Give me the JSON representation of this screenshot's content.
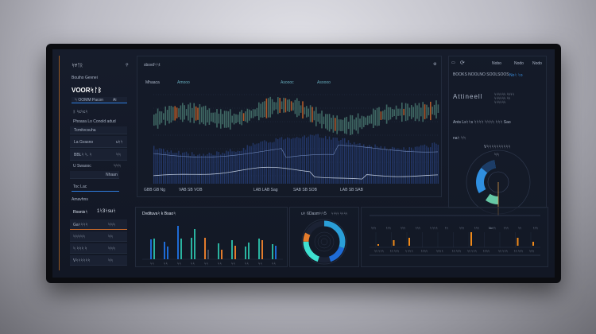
{
  "sidebar": {
    "logo": "ᛋ∀ᛏᚱ",
    "subtitle": "Bouiho Gevnei",
    "title": "VOORᛋᛚᛒ",
    "tab_left": "ᛋ OOMM  Pacon",
    "tab_right": "Ai",
    "items": [
      "ᛒ ᛋcᛋcᛋ",
      "Phoasa Lo  Conold adud",
      "Tcmitvcsuha"
    ],
    "rows": [
      {
        "label": "La Gvasno",
        "value": "uᛋᛋ"
      },
      {
        "label": "BBLᛋ ᛋ. ᛋ",
        "value": "ᛋᛋ"
      },
      {
        "label": "U Swaooc",
        "value": "ᛋᛋᛋ"
      }
    ],
    "bottom_item": "Nhaan",
    "bottom_item2": "Toc Lac",
    "footer": "Amavhns"
  },
  "main_chart": {
    "title": "sbsvdᛋᛋt",
    "legend": [
      "Mhaaca",
      "Amooo",
      "Asoooc",
      "Asoooo"
    ],
    "x_labels": [
      "GBB GB Ng",
      "VAB SB VOB",
      "LAB LAB Sag",
      "SAB SB SOB",
      "LAB SB SAB"
    ],
    "colors": {
      "candle": "#4a7a72",
      "candle_down": "#d86a2a",
      "volume": "#2e4f9a",
      "line": "#b8c4d8"
    }
  },
  "right_panel": {
    "header_labels": [
      "Nobo",
      "Nodo",
      "Nodo"
    ],
    "summary": "BOOKS NOOLNO SOOLSOOS",
    "link": "Noᛋ ᛋo",
    "big_label": "Attineell",
    "legend": [
      "ᛋᛋᛋᛋᛋᛋ ᛋᛋᛋᛋ",
      "ᛋᛋᛋᛋᛋᛋ ᛋᛋ",
      "ᛋᛋᛋᛋᛋᛋ"
    ],
    "line1": "Ants Lsᛋᛋs  ᛋᛋᛋᛋ ᛋᛋᛋᛋ ᛋᛋᛋ Sao",
    "line2": "naᛋ ᛋᛋ",
    "gauge_title": "Vᛋᛋᛋᛋᛋᛋᛋᛋᛋᛋ",
    "gauge_center": "ᛋᛋ",
    "ring_colors": [
      "#2f8fe0",
      "#1c3c66",
      "#66c9a6"
    ]
  },
  "bottom_left": {
    "header_label": "Rosnisᛋ",
    "header_value": "1ᛋ3ᛋsuᛋ",
    "rows": [
      {
        "label": "Gaᛋᛋᛋᛋ",
        "value": "ᛋᛋᛋ"
      },
      {
        "label": "ᛋᛋᛋᛋᛋ",
        "value": "ᛋᛋ"
      },
      {
        "label": "ᛋ ᛋᛋᛋ ᛋ",
        "value": "ᛋᛋᛋ"
      },
      {
        "label": "Vᛋᛋᛋᛋᛋᛋ",
        "value": "ᛋᛋ"
      }
    ],
    "progress": 0.75
  },
  "bar_chart": {
    "title": "Dvdituvaᛋ k Bsaoᛋ",
    "labels": [
      "ᛋᛋ",
      "ᛋᛋ",
      "ᛋᛋ",
      "ᛋᛋ",
      "ᛋᛋ",
      "ᛋᛋ",
      "ᛋᛋ",
      "ᛋᛋ",
      "ᛋᛋ",
      "ᛋᛋ"
    ],
    "series": [
      {
        "values": [
          25,
          22,
          42,
          27,
          27,
          20,
          24,
          16,
          26,
          19
        ],
        "colors": [
          "#1e6bd6",
          "#1e6bd6",
          "#1e6bd6",
          "#2ab3a0",
          "#e37b2c",
          "#2ab3a0",
          "#2ab3a0",
          "#2ab3a0",
          "#2ab3a0",
          "#2ab3a0"
        ]
      },
      {
        "values": [
          26,
          16,
          26,
          38,
          12,
          12,
          17,
          21,
          24,
          17
        ],
        "colors": [
          "#2ab3a0",
          "#1e6bd6",
          "#2ab3a0",
          "#2ab3a0",
          "#444c5c",
          "#e37b2c",
          "#e37b2c",
          "#2ab3a0",
          "#e37b2c",
          "#1e6bd6"
        ]
      }
    ]
  },
  "donut": {
    "title": "uᛋ 6Dasmᛋᛋ5",
    "legend": "ᛋᛋᛋᛋ ᛋᛋᛋᛋ",
    "segments": [
      {
        "value": 30,
        "color": "#2a9fd8"
      },
      {
        "value": 15,
        "color": "#1e6bd6"
      },
      {
        "value": 10,
        "color": "#1b2234"
      },
      {
        "value": 20,
        "color": "#3fe0d0"
      },
      {
        "value": 7,
        "color": "#e37b2c"
      },
      {
        "value": 18,
        "color": "#1b2234"
      }
    ]
  },
  "orange_chart": {
    "top_labels": [
      "ᛋᛋᛋ",
      "ᛋᛋᛋ",
      "ᛋᛋᛋ",
      "ᛋᛋᛋ",
      "ᛋ ᛋᛋᛋ",
      "ᛋᛋ",
      "ᛋᛋᛋ",
      "ᛋᛋᛋ",
      "Noᛋᛋ",
      "ᛋᛋᛋ",
      "ᛋᛋ",
      "ᛋᛋᛋ"
    ],
    "bottom_labels": [
      "ᛋᛋ ᛋᛋᛋ",
      "ᛋᛋ ᛋᛋᛋ",
      "ᛋ ᛋᛋᛋ",
      "ᛋᛋᛋᛋ",
      "ᛋᛋᛋᛋ",
      "ᛋᛋ ᛋᛋᛋ",
      "ᛋᛋ ᛋᛋᛋ",
      "ᛋᛋᛋᛋ",
      "ᛋᛋ ᛋᛋᛋ",
      "ᛋᛋ ᛋᛋᛋ",
      "ᛋᛋᛋ"
    ],
    "bars": [
      2,
      7,
      10,
      0,
      0,
      0,
      17,
      0,
      0,
      10,
      5
    ],
    "color": "#f08a1a"
  }
}
